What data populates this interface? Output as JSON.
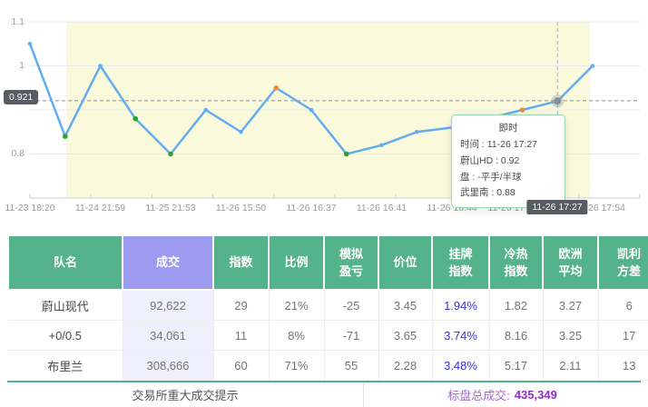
{
  "chart": {
    "y_axis_labels": [
      "1.1",
      "1",
      "0.8"
    ],
    "value_badge": "0.921",
    "time_badge": "11-26 17:27",
    "x_labels": [
      "11-23 18:20",
      "11-24 21:59",
      "11-25 21:53",
      "11-26 15:50",
      "11-26 16:37",
      "11-26 16:41",
      "11-26 16:44",
      "11-26 17",
      "26 17:54"
    ],
    "tooltip": {
      "title": "即时",
      "rows": [
        "时间 : 11-26 17:27",
        "蔚山HD : 0.92",
        "盘 : -平手/半球",
        "武里南 : 0.88"
      ]
    }
  },
  "chart_data": {
    "type": "line",
    "series": [
      {
        "name": "蔚山HD",
        "values": [
          1.05,
          0.84,
          1.0,
          0.88,
          0.8,
          0.9,
          0.85,
          0.95,
          0.9,
          0.8,
          0.82,
          0.85,
          0.86,
          0.88,
          0.9,
          0.92,
          1.0
        ]
      }
    ],
    "point_styles": [
      "normal",
      "fall",
      "normal",
      "fall",
      "fall",
      "normal",
      "normal",
      "rise",
      "normal",
      "fall",
      "normal",
      "normal",
      "normal",
      "normal",
      "rise",
      "current",
      "normal"
    ],
    "x_tick_labels": [
      "11-23 18:20",
      "11-24 21:59",
      "11-25 21:53",
      "11-26 15:50",
      "11-26 16:37",
      "11-26 16:41",
      "11-26 16:44",
      "11-26 17",
      "26 17:54"
    ],
    "ylim": [
      0.7,
      1.1
    ],
    "y_ticks": [
      1.1,
      1.0,
      0.9,
      0.8
    ],
    "reference_value": 0.921,
    "current_point": {
      "time": "11-26 17:27",
      "value": 0.92
    },
    "grid": true,
    "legend_position": "none"
  },
  "colors": {
    "line": "#63ADEF",
    "fall_point": "#2CA42C",
    "rise_point": "#EE8D31",
    "band": "#FBF9DC",
    "grid_line": "#E6EAEE",
    "axis_line": "#C9CDD1",
    "badge_bg": "#575C63",
    "tooltip_border": "#93D8AE",
    "header_green": "#55B38B",
    "header_purple": "#9C9BF0",
    "volume_cell": "#EFEEFB",
    "listed_blue": "#3734D6",
    "total_purple": "#8C30C8"
  },
  "table": {
    "headers": [
      "队名",
      "成交",
      "指数",
      "比例",
      "模拟\n盈亏",
      "价位",
      "挂牌\n指数",
      "冷热\n指数",
      "欧洲\n平均",
      "凯利\n方差"
    ],
    "rows": [
      [
        "蔚山现代",
        "92,622",
        "29",
        "21%",
        "-25",
        "3.45",
        "1.94%",
        "1.82",
        "3.27",
        "6"
      ],
      [
        "+0/0.5",
        "34,061",
        "11",
        "8%",
        "-71",
        "3.65",
        "3.74%",
        "8.16",
        "3.25",
        "17"
      ],
      [
        "布里兰",
        "308,666",
        "60",
        "71%",
        "55",
        "2.28",
        "3.48%",
        "5.17",
        "2.11",
        "13"
      ]
    ],
    "footer": {
      "left": "交易所重大成交提示",
      "total_label": "标盘总成交:",
      "total_value": "435,349"
    }
  }
}
